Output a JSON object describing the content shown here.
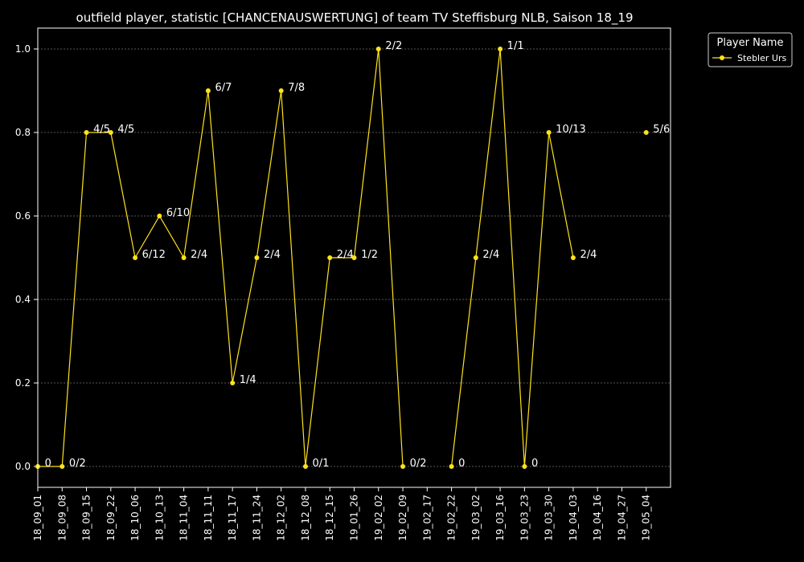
{
  "chart_data": {
    "type": "line",
    "title": "outfield player, statistic [CHANCENAUSWERTUNG] of team TV Steffisburg NLB, Saison 18_19",
    "xlabel": "",
    "ylabel": "",
    "ylim": [
      -0.05,
      1.05
    ],
    "yticks": [
      "0.0",
      "0.2",
      "0.4",
      "0.6",
      "0.8",
      "1.0"
    ],
    "ytick_values": [
      0.0,
      0.2,
      0.4,
      0.6,
      0.8,
      1.0
    ],
    "grid": true,
    "legend_title": "Player Name",
    "legend_placement": "outside-top-right",
    "categories": [
      "18_09_01",
      "18_09_08",
      "18_09_15",
      "18_09_22",
      "18_10_06",
      "18_10_13",
      "18_11_04",
      "18_11_11",
      "18_11_17",
      "18_11_24",
      "18_12_02",
      "18_12_08",
      "18_12_15",
      "19_01_26",
      "19_02_02",
      "19_02_09",
      "19_02_17",
      "19_02_22",
      "19_03_02",
      "19_03_16",
      "19_03_23",
      "19_03_30",
      "19_04_03",
      "19_04_16",
      "19_04_27",
      "19_05_04"
    ],
    "series": [
      {
        "name": "Stebler Urs",
        "color": "#ffe31a",
        "values": [
          0.0,
          0.0,
          0.8,
          0.8,
          0.5,
          0.6,
          0.5,
          0.9,
          0.2,
          0.5,
          0.9,
          0.0,
          0.5,
          0.5,
          1.0,
          0.0,
          null,
          0.0,
          0.5,
          1.0,
          0.0,
          0.8,
          0.5,
          null,
          null,
          0.8
        ],
        "labels": [
          "0",
          "0/2",
          "4/5",
          "4/5",
          "6/12",
          "6/10",
          "2/4",
          "6/7",
          "1/4",
          "2/4",
          "7/8",
          "0/1",
          "2/4",
          "1/2",
          "2/2",
          "0/2",
          null,
          "0",
          "2/4",
          "1/1",
          "0",
          "10/13",
          "2/4",
          null,
          null,
          "5/6"
        ]
      }
    ]
  }
}
